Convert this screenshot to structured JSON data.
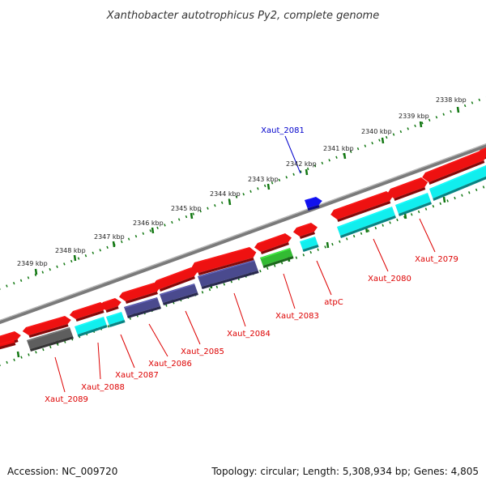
{
  "title": "Xanthobacter autotrophicus Py2, complete genome",
  "footer": {
    "accession": "Accession: NC_009720",
    "topology": "Topology: circular; Length: 5,308,934 bp; Genes: 4,805"
  },
  "tick_labels": [
    "2338 kbp",
    "2339 kbp",
    "2340 kbp",
    "2341 kbp",
    "2342 kbp",
    "2343 kbp",
    "2344 kbp",
    "2345 kbp",
    "2346 kbp",
    "2347 kbp",
    "2348 kbp",
    "2349 kbp"
  ],
  "gene_labels": [
    "Xaut_2081",
    "Xaut_2079",
    "Xaut_2080",
    "atpC",
    "Xaut_2083",
    "Xaut_2084",
    "Xaut_2085",
    "Xaut_2086",
    "Xaut_2087",
    "Xaut_2088",
    "Xaut_2089"
  ],
  "colors": {
    "backbone": "#7a7a7a",
    "forward_gene": "#ee1111",
    "cds_cyan": "#11eeee",
    "cds_purple": "#4a4a8e",
    "cds_gray": "#5e5e5e",
    "cds_green": "#33bb33",
    "blue_feature": "#1111ee",
    "tick": "#117711",
    "label_red": "#dd0000",
    "label_blue": "#0000cc"
  }
}
